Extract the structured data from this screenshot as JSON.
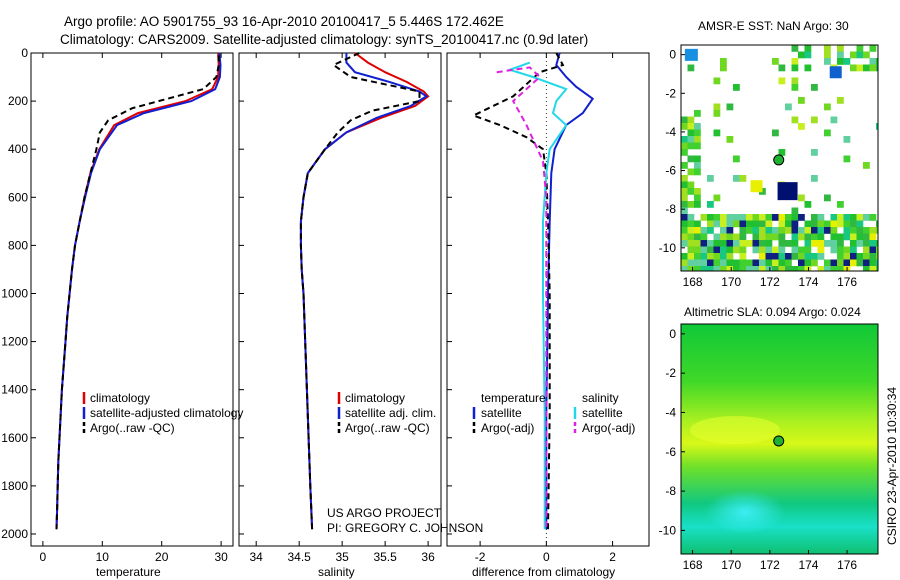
{
  "header": {
    "line1": "Argo profile: AO 5901755_93 16-Apr-2010 20100417_5 5.446S 172.462E",
    "line2": "Climatology: CARS2009. Satellite-adjusted climatology: synTS_20100417.nc (0.9d later)"
  },
  "side_note": "CSIRO 23-Apr-2010 10:30:34",
  "project_note": {
    "line1": "US ARGO PROJECT",
    "line2": "PI: GREGORY C. JOHNSON"
  },
  "colors": {
    "climatology": "#e00000",
    "satellite": "#1020d0",
    "argo": "#000000",
    "satellite_diff": "#20d8e8",
    "argo_diff": "#e020e0"
  },
  "chart_data": [
    {
      "id": "temperature",
      "type": "line",
      "xlabel": "temperature",
      "xlim": [
        -2,
        32
      ],
      "ylim": [
        2050,
        0
      ],
      "xticks": [
        0,
        10,
        20,
        30
      ],
      "yticks": [
        0,
        200,
        400,
        600,
        800,
        1000,
        1200,
        1400,
        1600,
        1800,
        2000
      ],
      "legend": [
        "climatology",
        "satellite-adjusted climatology",
        "Argo(..raw -QC)"
      ],
      "series": [
        {
          "name": "climatology",
          "color_key": "climatology",
          "dash": false,
          "points": [
            [
              29.5,
              0
            ],
            [
              29.6,
              50
            ],
            [
              29.5,
              100
            ],
            [
              28.5,
              150
            ],
            [
              24,
              200
            ],
            [
              16,
              250
            ],
            [
              12,
              300
            ],
            [
              9.5,
              400
            ],
            [
              8,
              500
            ],
            [
              7,
              600
            ],
            [
              6.2,
              700
            ],
            [
              5.4,
              800
            ],
            [
              4.9,
              900
            ],
            [
              4.5,
              1000
            ],
            [
              4.1,
              1100
            ],
            [
              3.8,
              1200
            ],
            [
              3.5,
              1300
            ],
            [
              3.2,
              1400
            ],
            [
              3,
              1500
            ],
            [
              2.8,
              1600
            ],
            [
              2.6,
              1700
            ],
            [
              2.5,
              1800
            ],
            [
              2.4,
              1900
            ],
            [
              2.3,
              1980
            ]
          ]
        },
        {
          "name": "satellite",
          "color_key": "satellite",
          "dash": false,
          "points": [
            [
              29.7,
              0
            ],
            [
              29.9,
              50
            ],
            [
              29.8,
              100
            ],
            [
              29,
              150
            ],
            [
              25,
              200
            ],
            [
              17,
              250
            ],
            [
              12.5,
              300
            ],
            [
              9.6,
              400
            ],
            [
              8.1,
              500
            ],
            [
              7.1,
              600
            ],
            [
              6.2,
              700
            ],
            [
              5.4,
              800
            ],
            [
              4.9,
              900
            ],
            [
              4.5,
              1000
            ],
            [
              4.1,
              1100
            ],
            [
              3.8,
              1200
            ],
            [
              3.5,
              1300
            ],
            [
              3.2,
              1400
            ],
            [
              3,
              1500
            ],
            [
              2.8,
              1600
            ],
            [
              2.6,
              1700
            ],
            [
              2.5,
              1800
            ],
            [
              2.4,
              1900
            ],
            [
              2.3,
              1980
            ]
          ]
        },
        {
          "name": "argo",
          "color_key": "argo",
          "dash": true,
          "points": [
            [
              29.6,
              10
            ],
            [
              29.6,
              50
            ],
            [
              29.2,
              100
            ],
            [
              27,
              150
            ],
            [
              21,
              190
            ],
            [
              15,
              230
            ],
            [
              11,
              280
            ],
            [
              9.6,
              330
            ],
            [
              9,
              400
            ],
            [
              8,
              500
            ],
            [
              7,
              600
            ],
            [
              6.2,
              700
            ],
            [
              5.4,
              800
            ],
            [
              4.9,
              900
            ],
            [
              4.5,
              1000
            ],
            [
              4.1,
              1100
            ],
            [
              3.8,
              1200
            ],
            [
              3.5,
              1300
            ],
            [
              3.2,
              1400
            ],
            [
              3,
              1500
            ],
            [
              2.8,
              1600
            ],
            [
              2.6,
              1700
            ],
            [
              2.5,
              1800
            ],
            [
              2.4,
              1900
            ],
            [
              2.3,
              1980
            ]
          ]
        }
      ]
    },
    {
      "id": "salinity",
      "type": "line",
      "xlabel": "salinity",
      "xlim": [
        33.8,
        36.15
      ],
      "ylim": [
        2050,
        0
      ],
      "xticks": [
        34,
        34.5,
        35,
        35.5,
        36
      ],
      "legend": [
        "climatology",
        "satellite adj. clim.",
        "Argo(..raw -QC)"
      ],
      "series": [
        {
          "name": "climatology",
          "color_key": "climatology",
          "dash": false,
          "points": [
            [
              35.15,
              0
            ],
            [
              35.3,
              40
            ],
            [
              35.5,
              80
            ],
            [
              35.75,
              120
            ],
            [
              35.95,
              160
            ],
            [
              36,
              180
            ],
            [
              35.85,
              220
            ],
            [
              35.45,
              270
            ],
            [
              35.05,
              330
            ],
            [
              34.8,
              400
            ],
            [
              34.6,
              500
            ],
            [
              34.55,
              600
            ],
            [
              34.52,
              700
            ],
            [
              34.52,
              800
            ],
            [
              34.53,
              900
            ],
            [
              34.55,
              1000
            ],
            [
              34.57,
              1200
            ],
            [
              34.59,
              1400
            ],
            [
              34.61,
              1600
            ],
            [
              34.63,
              1800
            ],
            [
              34.65,
              1980
            ]
          ]
        },
        {
          "name": "satellite",
          "color_key": "satellite",
          "dash": false,
          "points": [
            [
              35.05,
              0
            ],
            [
              35.05,
              40
            ],
            [
              35.15,
              80
            ],
            [
              35.55,
              120
            ],
            [
              35.9,
              160
            ],
            [
              35.98,
              180
            ],
            [
              35.8,
              220
            ],
            [
              35.4,
              270
            ],
            [
              35.05,
              330
            ],
            [
              34.8,
              400
            ],
            [
              34.6,
              500
            ],
            [
              34.55,
              600
            ],
            [
              34.52,
              700
            ],
            [
              34.52,
              800
            ],
            [
              34.53,
              900
            ],
            [
              34.55,
              1000
            ],
            [
              34.57,
              1200
            ],
            [
              34.59,
              1400
            ],
            [
              34.61,
              1600
            ],
            [
              34.63,
              1800
            ],
            [
              34.65,
              1980
            ]
          ]
        },
        {
          "name": "argo",
          "color_key": "argo",
          "dash": true,
          "points": [
            [
              35.2,
              0
            ],
            [
              34.9,
              50
            ],
            [
              35.1,
              100
            ],
            [
              35.5,
              130
            ],
            [
              35.9,
              160
            ],
            [
              35.9,
              200
            ],
            [
              35.35,
              240
            ],
            [
              35.1,
              280
            ],
            [
              34.95,
              330
            ],
            [
              34.8,
              400
            ],
            [
              34.6,
              500
            ],
            [
              34.55,
              600
            ],
            [
              34.52,
              700
            ],
            [
              34.52,
              800
            ],
            [
              34.53,
              900
            ],
            [
              34.55,
              1000
            ],
            [
              34.57,
              1200
            ],
            [
              34.59,
              1400
            ],
            [
              34.61,
              1600
            ],
            [
              34.63,
              1800
            ],
            [
              34.65,
              1980
            ]
          ]
        }
      ]
    },
    {
      "id": "difference",
      "type": "line",
      "xlabel": "difference from climatology",
      "xlim": [
        -3,
        3.1
      ],
      "ylim": [
        2050,
        0
      ],
      "xticks": [
        -2,
        0,
        2
      ],
      "legend_left_title": "temperature",
      "legend_right_title": "salinity",
      "legend": [
        "satellite",
        "Argo(-adj)",
        "satellite",
        "Argo(-adj)"
      ],
      "series": [
        {
          "name": "temperature satellite",
          "color_key": "satellite",
          "dash": false,
          "points": [
            [
              0.4,
              0
            ],
            [
              0.3,
              50
            ],
            [
              0.6,
              100
            ],
            [
              0.9,
              140
            ],
            [
              1.4,
              190
            ],
            [
              1.1,
              250
            ],
            [
              0.6,
              300
            ],
            [
              0.25,
              400
            ],
            [
              0.15,
              500
            ],
            [
              0.1,
              700
            ],
            [
              0.05,
              1000
            ],
            [
              0,
              1500
            ],
            [
              0,
              1980
            ]
          ]
        },
        {
          "name": "temperature argo",
          "color_key": "argo",
          "dash": true,
          "points": [
            [
              0.3,
              0
            ],
            [
              0.5,
              50
            ],
            [
              -0.2,
              80
            ],
            [
              -1.0,
              180
            ],
            [
              -2.2,
              260
            ],
            [
              -1.4,
              300
            ],
            [
              -0.6,
              350
            ],
            [
              -0.1,
              400
            ],
            [
              0,
              500
            ],
            [
              0.05,
              700
            ],
            [
              0.1,
              1000
            ],
            [
              0.1,
              1500
            ],
            [
              0.05,
              1980
            ]
          ]
        },
        {
          "name": "salinity satellite",
          "color_key": "satellite_diff",
          "dash": false,
          "points": [
            [
              -0.5,
              40
            ],
            [
              -1.1,
              70
            ],
            [
              -0.4,
              100
            ],
            [
              0.6,
              150
            ],
            [
              0.3,
              200
            ],
            [
              0.2,
              250
            ],
            [
              0.6,
              300
            ],
            [
              0.1,
              400
            ],
            [
              0,
              500
            ],
            [
              -0.1,
              700
            ],
            [
              -0.1,
              1000
            ],
            [
              -0.05,
              1500
            ],
            [
              -0.05,
              1980
            ]
          ]
        },
        {
          "name": "salinity argo",
          "color_key": "argo_diff",
          "dash": true,
          "points": [
            [
              -1.5,
              80
            ],
            [
              -0.5,
              60
            ],
            [
              -0.2,
              100
            ],
            [
              -1.0,
              200
            ],
            [
              -0.6,
              300
            ],
            [
              -0.1,
              450
            ],
            [
              0,
              600
            ],
            [
              0,
              1000
            ],
            [
              0,
              1980
            ]
          ]
        }
      ]
    },
    {
      "id": "sst_map",
      "type": "heatmap",
      "title": "AMSR-E SST: NaN Argo: 30",
      "xlim": [
        167.4,
        177.6
      ],
      "ylim": [
        -11.2,
        0.5
      ],
      "xticks": [
        168,
        170,
        172,
        174,
        176
      ],
      "yticks": [
        0,
        -2,
        -4,
        -6,
        -8,
        -10
      ],
      "argo_position": [
        172.46,
        -5.45
      ]
    },
    {
      "id": "sla_map",
      "type": "heatmap",
      "title": "Altimetric SLA: 0.094 Argo: 0.024",
      "xlim": [
        167.4,
        177.6
      ],
      "ylim": [
        -11.2,
        0.5
      ],
      "xticks": [
        168,
        170,
        172,
        174,
        176
      ],
      "yticks": [
        0,
        -2,
        -4,
        -6,
        -8,
        -10
      ],
      "argo_position": [
        172.46,
        -5.45
      ]
    }
  ]
}
